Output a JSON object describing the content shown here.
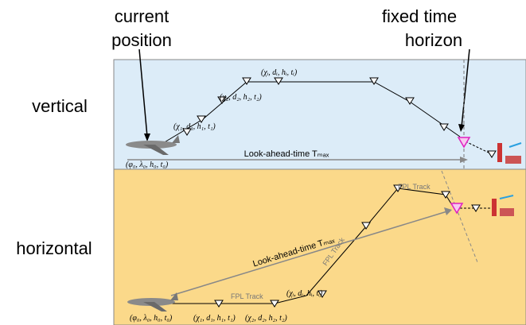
{
  "labels": {
    "current_position": [
      "current",
      "position"
    ],
    "fixed_time_horizon": [
      "fixed time",
      "horizon"
    ],
    "vertical": "vertical",
    "horizontal": "horizontal"
  },
  "vertical_panel": {
    "look_ahead": "Look-ahead-time Tₘₐₓ",
    "start": "(φ₀, λ₀, h₀, t₀)",
    "wp1": "(χ₁, d₁, h₁, t₁)",
    "wp2": "(χ₂, d₂, h₂, t₂)",
    "wpi": "(χᵢ, dᵢ, hᵢ, tᵢ)"
  },
  "horizontal_panel": {
    "look_ahead": "Look-ahead-time Tₘₐₓ",
    "start": "(φ₀, λ₀, h₀, t₀)",
    "wp1": "(χ₁, d₁, h₁, t₁)",
    "wp2": "(χ₂, d₂, h₂, t₂)",
    "wpi": "(χᵢ, dᵢ, hᵢ, tᵢ)",
    "fpl_tracks": [
      "FPL Track",
      "FPL Track",
      "FPL Track"
    ]
  }
}
